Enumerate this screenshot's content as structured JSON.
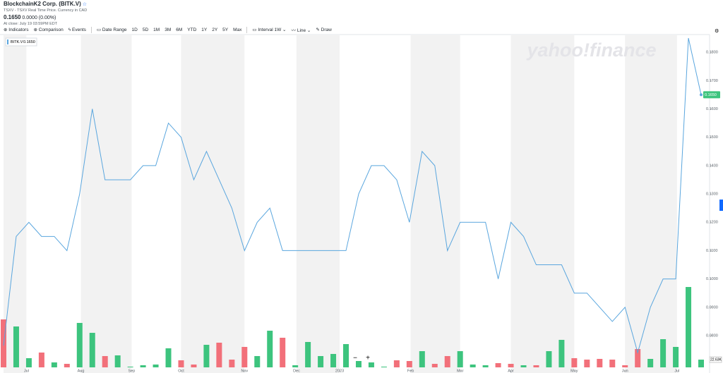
{
  "header": {
    "title": "BlockchainK2 Corp. (BITK.V)",
    "exchange": "TSXV - TSXV Real Time Price. Currency in CAD",
    "price": "0.1650",
    "change": "0.0000",
    "change_pct": "(0.00%)",
    "close_time": "At close: July 19 03:59PM EDT"
  },
  "toolbar": {
    "indicators": "Indicators",
    "comparison": "Comparison",
    "events": "Events",
    "date_range": "Date Range",
    "ranges": [
      "1D",
      "5D",
      "1M",
      "3M",
      "6M",
      "YTD",
      "1Y",
      "2Y",
      "5Y",
      "Max"
    ],
    "interval": "Interval",
    "interval_value": "1W",
    "chart_style": "Line",
    "draw": "Draw"
  },
  "chart_data": {
    "type": "line",
    "watermark": "yahoo!finance",
    "categories": [
      null,
      null,
      null,
      null,
      null,
      null,
      null,
      null,
      null,
      null,
      null,
      null,
      null,
      null,
      null,
      null,
      null,
      null,
      null,
      null,
      null,
      null,
      null,
      null,
      null,
      null,
      null,
      null,
      null,
      null,
      null,
      null,
      null,
      null,
      null,
      null,
      null,
      null,
      null,
      null,
      null,
      null,
      null,
      null,
      null,
      null,
      null,
      null,
      null,
      null,
      null,
      null,
      null,
      null,
      null,
      null
    ],
    "xticks": [
      {
        "value": 1.8,
        "label": "Jul"
      },
      {
        "value": 6.1,
        "label": "Aug"
      },
      {
        "value": 10.1,
        "label": "Sep"
      },
      {
        "value": 14,
        "label": "Oct"
      },
      {
        "value": 19,
        "label": "Nov"
      },
      {
        "value": 23.1,
        "label": "Dec"
      },
      {
        "value": 26.5,
        "label": "2023"
      },
      {
        "value": 32.1,
        "label": "Feb"
      },
      {
        "value": 36,
        "label": "Mar"
      },
      {
        "value": 40,
        "label": "Apr"
      },
      {
        "value": 45,
        "label": "May"
      },
      {
        "value": 49,
        "label": "Jun"
      },
      {
        "value": 53.1,
        "label": "Jul"
      }
    ],
    "series": [
      {
        "name": "BITK.V",
        "color": "#5aa6de",
        "values": [
          0.0765,
          0.115,
          0.12,
          0.115,
          0.115,
          0.11,
          0.13,
          0.16,
          0.135,
          0.135,
          0.135,
          0.14,
          0.14,
          0.155,
          0.15,
          0.135,
          0.145,
          0.135,
          0.125,
          0.11,
          0.12,
          0.125,
          0.11,
          0.11,
          0.11,
          0.11,
          0.11,
          0.11,
          0.13,
          0.14,
          0.14,
          0.135,
          0.12,
          0.145,
          0.14,
          0.11,
          0.12,
          0.12,
          0.12,
          0.1,
          0.12,
          0.115,
          0.105,
          0.105,
          0.105,
          0.095,
          0.095,
          0.09,
          0.085,
          0.09,
          0.074,
          0.09,
          0.1,
          0.1,
          0.185,
          0.165
        ]
      }
    ],
    "ylim": [
      0.0688,
      0.186
    ],
    "yticks": [
      {
        "value": 0.08,
        "label": "0.0800"
      },
      {
        "value": 0.09,
        "label": "0.0900"
      },
      {
        "value": 0.1,
        "label": "0.1000"
      },
      {
        "value": 0.11,
        "label": "0.1100"
      },
      {
        "value": 0.12,
        "label": "0.1200"
      },
      {
        "value": 0.13,
        "label": "0.1300"
      },
      {
        "value": 0.14,
        "label": "0.1400"
      },
      {
        "value": 0.15,
        "label": "0.1500"
      },
      {
        "value": 0.16,
        "label": "0.1600"
      },
      {
        "value": 0.17,
        "label": "0.1700"
      },
      {
        "value": 0.18,
        "label": "0.1800"
      }
    ],
    "volume": {
      "up_color": "#3dc47e",
      "down_color": "#f2707a",
      "ylim": [
        0,
        250
      ],
      "values": [
        140.5,
        119.8,
        26.9,
        43.4,
        14.5,
        10.3,
        130.2,
        101.2,
        33.1,
        35.1,
        2.1,
        6.2,
        8.3,
        55.8,
        20.7,
        8.3,
        66.1,
        72.3,
        22.7,
        59.9,
        33.1,
        107.4,
        86.8,
        6.2,
        74.4,
        33.1,
        39.3,
        68.2,
        18.6,
        14.5,
        2.1,
        20.7,
        18.6,
        47.5,
        10.3,
        33.1,
        47.5,
        8.3,
        6.2,
        12.4,
        10.3,
        6.2,
        6.2,
        47.5,
        80.6,
        26.9,
        22.7,
        24.8,
        22.7,
        6.2,
        53.7,
        24.8,
        82.6,
        59.9,
        235.5,
        22.63
      ],
      "up": [
        false,
        true,
        true,
        false,
        true,
        false,
        true,
        true,
        false,
        true,
        true,
        true,
        true,
        true,
        false,
        false,
        true,
        false,
        false,
        false,
        true,
        true,
        false,
        true,
        true,
        true,
        true,
        true,
        true,
        true,
        true,
        false,
        false,
        true,
        false,
        false,
        true,
        true,
        true,
        false,
        false,
        true,
        false,
        true,
        true,
        false,
        false,
        false,
        false,
        false,
        false,
        true,
        true,
        true,
        true,
        true
      ],
      "value_labels": [
        null,
        null,
        null,
        null,
        null,
        null,
        null,
        null,
        null,
        null,
        null,
        null,
        null,
        null,
        null,
        null,
        null,
        null,
        null,
        null,
        null,
        null,
        null,
        null,
        null,
        null,
        null,
        null,
        null,
        null,
        null,
        null,
        null,
        null,
        null,
        null,
        null,
        null,
        null,
        null,
        null,
        null,
        null,
        null,
        null,
        null,
        null,
        null,
        null,
        null,
        null,
        null,
        null,
        null,
        null,
        "22.63K"
      ]
    }
  }
}
